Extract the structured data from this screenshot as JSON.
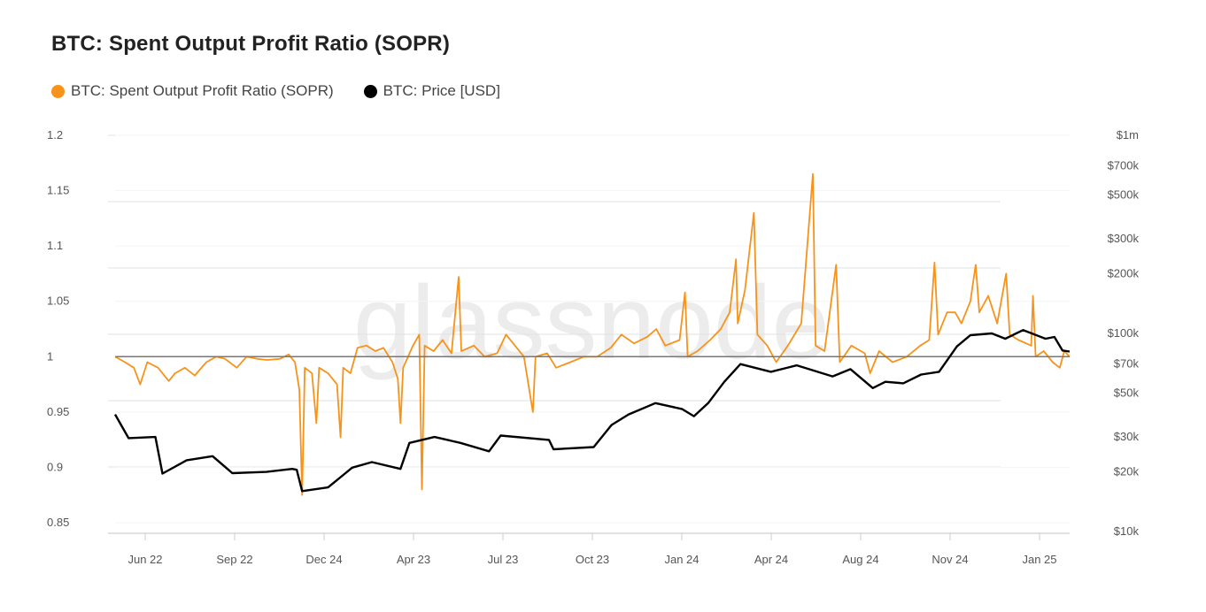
{
  "header": {
    "title": "BTC: Spent Output Profit Ratio (SOPR)"
  },
  "colors": {
    "sopr": "#F7931A",
    "price": "#000000",
    "grid": "#dde3e3",
    "watermark": "#ececec"
  },
  "chart_data": {
    "type": "line",
    "title": "BTC: Spent Output Profit Ratio (SOPR)",
    "watermark": "glassnode",
    "legend": [
      "BTC: Spent Output Profit Ratio (SOPR)",
      "BTC: Price [USD]"
    ],
    "legend_position": "top-left",
    "x_domain": [
      "2022-04-14",
      "2025-03-16"
    ],
    "x_tick_labels": [
      "Jun 22",
      "Sep 22",
      "Dec 24",
      "Apr 23",
      "Jul 23",
      "Oct 23",
      "Jan 24",
      "Apr 24",
      "Aug 24",
      "Nov 24",
      "Jan 25"
    ],
    "y_left": {
      "label": "SOPR",
      "range": [
        0.85,
        1.2
      ],
      "ticks": [
        "0.85",
        "0.9",
        "0.95",
        "1",
        "1.05",
        "1.1",
        "1.15",
        "1.2"
      ],
      "tick_values": [
        0.85,
        0.9,
        0.95,
        1,
        1.05,
        1.1,
        1.15,
        1.2
      ],
      "reference_line": 1
    },
    "y_right": {
      "label": "Price [USD]",
      "scale": "log",
      "range": [
        10000,
        1000000
      ],
      "ticks": [
        "$10k",
        "$20k",
        "$30k",
        "$50k",
        "$70k",
        "$100k",
        "$200k",
        "$300k",
        "$500k",
        "$700k",
        "$1m"
      ],
      "tick_values": [
        10000,
        20000,
        30000,
        50000,
        70000,
        100000,
        200000,
        300000,
        500000,
        700000,
        1000000
      ]
    },
    "grid": true,
    "series": [
      {
        "name": "BTC: Spent Output Profit Ratio (SOPR)",
        "axis": "left",
        "color": "#F7931A",
        "points": [
          [
            "2022-04-14",
            1.0
          ],
          [
            "2022-04-25",
            0.995
          ],
          [
            "2022-05-05",
            0.99
          ],
          [
            "2022-05-12",
            0.975
          ],
          [
            "2022-05-20",
            0.995
          ],
          [
            "2022-06-01",
            0.99
          ],
          [
            "2022-06-13",
            0.978
          ],
          [
            "2022-06-20",
            0.985
          ],
          [
            "2022-07-01",
            0.99
          ],
          [
            "2022-07-12",
            0.983
          ],
          [
            "2022-07-25",
            0.995
          ],
          [
            "2022-08-05",
            1.0
          ],
          [
            "2022-08-15",
            0.998
          ],
          [
            "2022-08-28",
            0.99
          ],
          [
            "2022-09-08",
            1.0
          ],
          [
            "2022-09-20",
            0.998
          ],
          [
            "2022-10-01",
            0.997
          ],
          [
            "2022-10-15",
            0.998
          ],
          [
            "2022-10-25",
            1.002
          ],
          [
            "2022-11-01",
            0.995
          ],
          [
            "2022-11-06",
            0.97
          ],
          [
            "2022-11-09",
            0.875
          ],
          [
            "2022-11-12",
            0.99
          ],
          [
            "2022-11-20",
            0.985
          ],
          [
            "2022-11-25",
            0.94
          ],
          [
            "2022-11-28",
            0.99
          ],
          [
            "2022-12-08",
            0.985
          ],
          [
            "2022-12-18",
            0.975
          ],
          [
            "2022-12-22",
            0.927
          ],
          [
            "2022-12-25",
            0.99
          ],
          [
            "2023-01-02",
            0.985
          ],
          [
            "2023-01-10",
            1.008
          ],
          [
            "2023-01-20",
            1.01
          ],
          [
            "2023-01-30",
            1.005
          ],
          [
            "2023-02-08",
            1.008
          ],
          [
            "2023-02-18",
            0.995
          ],
          [
            "2023-02-24",
            0.98
          ],
          [
            "2023-02-27",
            0.94
          ],
          [
            "2023-03-02",
            0.99
          ],
          [
            "2023-03-13",
            1.01
          ],
          [
            "2023-03-20",
            1.02
          ],
          [
            "2023-03-23",
            0.88
          ],
          [
            "2023-03-26",
            1.01
          ],
          [
            "2023-04-05",
            1.005
          ],
          [
            "2023-04-15",
            1.015
          ],
          [
            "2023-04-25",
            1.003
          ],
          [
            "2023-05-03",
            1.072
          ],
          [
            "2023-05-06",
            1.005
          ],
          [
            "2023-05-20",
            1.01
          ],
          [
            "2023-06-01",
            1.0
          ],
          [
            "2023-06-15",
            1.003
          ],
          [
            "2023-06-25",
            1.02
          ],
          [
            "2023-07-05",
            1.01
          ],
          [
            "2023-07-15",
            1.0
          ],
          [
            "2023-07-25",
            0.95
          ],
          [
            "2023-07-28",
            1.0
          ],
          [
            "2023-08-10",
            1.003
          ],
          [
            "2023-08-20",
            0.99
          ],
          [
            "2023-09-05",
            0.995
          ],
          [
            "2023-09-20",
            1.0
          ],
          [
            "2023-10-05",
            1.0
          ],
          [
            "2023-10-20",
            1.008
          ],
          [
            "2023-11-01",
            1.02
          ],
          [
            "2023-11-15",
            1.012
          ],
          [
            "2023-11-30",
            1.018
          ],
          [
            "2023-12-10",
            1.025
          ],
          [
            "2023-12-20",
            1.01
          ],
          [
            "2024-01-05",
            1.015
          ],
          [
            "2024-01-11",
            1.058
          ],
          [
            "2024-01-14",
            1.0
          ],
          [
            "2024-01-25",
            1.005
          ],
          [
            "2024-02-08",
            1.015
          ],
          [
            "2024-02-20",
            1.025
          ],
          [
            "2024-03-01",
            1.04
          ],
          [
            "2024-03-08",
            1.088
          ],
          [
            "2024-03-10",
            1.03
          ],
          [
            "2024-03-18",
            1.06
          ],
          [
            "2024-03-28",
            1.13
          ],
          [
            "2024-04-01",
            1.02
          ],
          [
            "2024-04-12",
            1.01
          ],
          [
            "2024-04-22",
            0.995
          ],
          [
            "2024-05-05",
            1.01
          ],
          [
            "2024-05-20",
            1.03
          ],
          [
            "2024-06-02",
            1.165
          ],
          [
            "2024-06-05",
            1.01
          ],
          [
            "2024-06-15",
            1.005
          ],
          [
            "2024-06-28",
            1.083
          ],
          [
            "2024-07-02",
            0.995
          ],
          [
            "2024-07-15",
            1.01
          ],
          [
            "2024-07-30",
            1.003
          ],
          [
            "2024-08-05",
            0.985
          ],
          [
            "2024-08-15",
            1.005
          ],
          [
            "2024-08-30",
            0.995
          ],
          [
            "2024-09-15",
            1.0
          ],
          [
            "2024-09-30",
            1.01
          ],
          [
            "2024-10-10",
            1.015
          ],
          [
            "2024-10-16",
            1.085
          ],
          [
            "2024-10-20",
            1.02
          ],
          [
            "2024-10-30",
            1.04
          ],
          [
            "2024-11-08",
            1.04
          ],
          [
            "2024-11-15",
            1.03
          ],
          [
            "2024-11-25",
            1.05
          ],
          [
            "2024-12-01",
            1.083
          ],
          [
            "2024-12-05",
            1.04
          ],
          [
            "2024-12-15",
            1.055
          ],
          [
            "2024-12-25",
            1.03
          ],
          [
            "2025-01-04",
            1.075
          ],
          [
            "2025-01-08",
            1.02
          ],
          [
            "2025-01-18",
            1.015
          ],
          [
            "2025-02-01",
            1.01
          ],
          [
            "2025-02-03",
            1.055
          ],
          [
            "2025-02-06",
            1.0
          ],
          [
            "2025-02-15",
            1.005
          ],
          [
            "2025-02-25",
            0.995
          ],
          [
            "2025-03-05",
            0.99
          ],
          [
            "2025-03-10",
            1.005
          ],
          [
            "2025-03-16",
            1.0
          ]
        ]
      },
      {
        "name": "BTC: Price [USD]",
        "axis": "right",
        "color": "#000000",
        "points": [
          [
            "2022-04-14",
            39000
          ],
          [
            "2022-04-29",
            29600
          ],
          [
            "2022-05-29",
            30000
          ],
          [
            "2022-06-06",
            19600
          ],
          [
            "2022-07-03",
            22900
          ],
          [
            "2022-08-01",
            24000
          ],
          [
            "2022-08-23",
            19700
          ],
          [
            "2022-09-30",
            20000
          ],
          [
            "2022-10-29",
            20700
          ],
          [
            "2022-11-03",
            20500
          ],
          [
            "2022-11-09",
            16000
          ],
          [
            "2022-12-08",
            16700
          ],
          [
            "2023-01-04",
            21000
          ],
          [
            "2023-01-26",
            22400
          ],
          [
            "2023-02-27",
            20700
          ],
          [
            "2023-03-09",
            28000
          ],
          [
            "2023-04-06",
            30000
          ],
          [
            "2023-05-05",
            28000
          ],
          [
            "2023-06-06",
            25400
          ],
          [
            "2023-06-19",
            30500
          ],
          [
            "2023-08-12",
            29000
          ],
          [
            "2023-08-17",
            26000
          ],
          [
            "2023-10-01",
            26700
          ],
          [
            "2023-10-21",
            34500
          ],
          [
            "2023-11-09",
            39000
          ],
          [
            "2023-12-09",
            44500
          ],
          [
            "2024-01-08",
            41500
          ],
          [
            "2024-01-21",
            38200
          ],
          [
            "2024-02-06",
            44500
          ],
          [
            "2024-02-24",
            57000
          ],
          [
            "2024-03-13",
            70000
          ],
          [
            "2024-04-16",
            64000
          ],
          [
            "2024-05-15",
            69000
          ],
          [
            "2024-06-24",
            60700
          ],
          [
            "2024-07-14",
            66000
          ],
          [
            "2024-08-08",
            53000
          ],
          [
            "2024-08-22",
            57000
          ],
          [
            "2024-09-11",
            56000
          ],
          [
            "2024-10-01",
            62000
          ],
          [
            "2024-10-21",
            64000
          ],
          [
            "2024-11-10",
            86000
          ],
          [
            "2024-11-25",
            98000
          ],
          [
            "2024-12-19",
            100000
          ],
          [
            "2025-01-03",
            94000
          ],
          [
            "2025-01-23",
            104000
          ],
          [
            "2025-02-17",
            94000
          ],
          [
            "2025-02-27",
            96000
          ],
          [
            "2025-03-08",
            82000
          ],
          [
            "2025-03-16",
            81000
          ]
        ]
      }
    ]
  }
}
